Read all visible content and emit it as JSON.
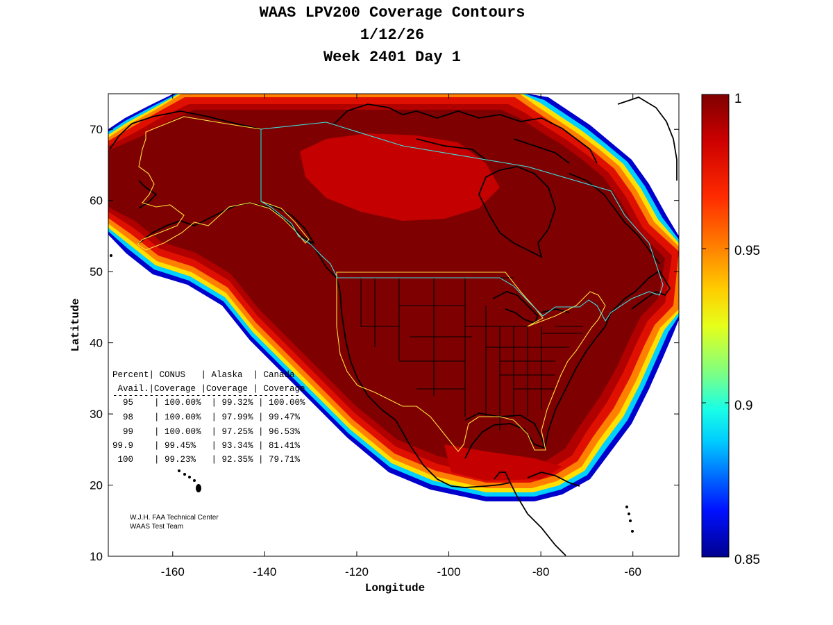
{
  "title": {
    "line1": "WAAS LPV200 Coverage Contours",
    "line2": "1/12/26",
    "line3": "Week 2401 Day 1"
  },
  "map": {
    "xlabel": "Longitude",
    "ylabel": "Latitude",
    "xlim": [
      -174,
      -50
    ],
    "ylim": [
      10,
      75
    ],
    "x_ticks": [
      -160,
      -140,
      -120,
      -100,
      -80,
      -60
    ],
    "y_ticks": [
      10,
      20,
      30,
      40,
      50,
      60,
      70
    ]
  },
  "colorbar": {
    "range": [
      0.85,
      1
    ],
    "labels": [
      "1",
      "0.95",
      "0.9",
      "0.85"
    ],
    "colors": [
      "#7f0000",
      "#d40000",
      "#ff3000",
      "#ff8c00",
      "#ffd700",
      "#d9ff26",
      "#80ff80",
      "#26ffd9",
      "#00d4ff",
      "#0080ff",
      "#0028ff",
      "#0000d4",
      "#00008f"
    ]
  },
  "table": {
    "header1": "Percent| CONUS   | Alaska  | Canada",
    "header2": " Avail.|Coverage |Coverage | Coverage",
    "divider": "------------------------------------",
    "rows": [
      "  95    | 100.00%  | 99.32% | 100.00%",
      "  98    | 100.00%  | 97.99% | 99.47%",
      "  99    | 100.00%  | 97.25% | 96.53%",
      "99.9    | 99.45%   | 93.34% | 81.41%",
      " 100    | 99.23%   | 92.35% | 79.71%"
    ]
  },
  "credit": {
    "line1": "W.J.H. FAA Technical Center",
    "line2": "WAAS Test Team"
  }
}
